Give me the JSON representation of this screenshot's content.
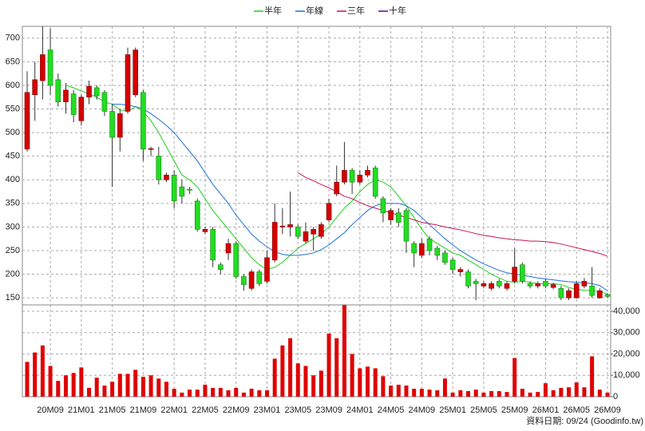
{
  "chart_data": {
    "type": "candlestick",
    "categories": [
      null,
      null,
      null,
      "20M09",
      null,
      null,
      null,
      "21M01",
      null,
      null,
      null,
      "21M05",
      null,
      null,
      null,
      "21M09",
      null,
      null,
      null,
      "22M01",
      null,
      null,
      null,
      "22M05",
      null,
      null,
      null,
      "22M09",
      null,
      null,
      null,
      "23M01",
      null,
      null,
      null,
      "23M05",
      null,
      null,
      null,
      "23M09",
      null,
      null,
      null,
      "24M01",
      null,
      null,
      null,
      "24M05",
      null,
      null,
      null,
      "24M09",
      null,
      null,
      null,
      "25M01",
      null,
      null,
      null,
      "25M05",
      null,
      null,
      null,
      "25M09",
      null,
      null,
      null,
      "26M01",
      null,
      null,
      null,
      "26M05",
      null,
      null,
      null,
      "26M09"
    ],
    "open": [
      465,
      580,
      610,
      675,
      612,
      565,
      582,
      525,
      575,
      595,
      585,
      545,
      490,
      545,
      580,
      585,
      465,
      450,
      400,
      410,
      385,
      380,
      355,
      290,
      295,
      220,
      245,
      265,
      195,
      170,
      205,
      185,
      230,
      300,
      300,
      300,
      270,
      285,
      280,
      315,
      370,
      395,
      420,
      395,
      410,
      425,
      360,
      315,
      330,
      335,
      265,
      240,
      275,
      255,
      245,
      230,
      205,
      205,
      185,
      175,
      170,
      185,
      170,
      185,
      220,
      180,
      175,
      185,
      172,
      170,
      150,
      150,
      175,
      175,
      150,
      157
    ],
    "high": [
      630,
      650,
      725,
      720,
      625,
      605,
      590,
      580,
      610,
      600,
      590,
      560,
      550,
      680,
      680,
      590,
      470,
      470,
      415,
      420,
      400,
      385,
      360,
      300,
      300,
      225,
      275,
      270,
      200,
      210,
      210,
      250,
      350,
      340,
      375,
      305,
      310,
      300,
      310,
      360,
      430,
      480,
      425,
      420,
      430,
      430,
      365,
      340,
      340,
      340,
      270,
      275,
      280,
      260,
      250,
      235,
      215,
      210,
      190,
      185,
      185,
      190,
      185,
      255,
      225,
      185,
      185,
      190,
      182,
      175,
      170,
      185,
      192,
      215,
      170,
      160
    ],
    "low": [
      460,
      525,
      570,
      580,
      555,
      540,
      522,
      515,
      560,
      570,
      535,
      385,
      460,
      540,
      575,
      440,
      450,
      390,
      395,
      340,
      350,
      370,
      290,
      285,
      215,
      200,
      230,
      190,
      165,
      165,
      175,
      180,
      225,
      285,
      280,
      275,
      265,
      250,
      275,
      310,
      365,
      390,
      370,
      390,
      405,
      360,
      310,
      305,
      300,
      245,
      215,
      235,
      240,
      230,
      220,
      200,
      195,
      170,
      145,
      170,
      165,
      170,
      165,
      180,
      180,
      170,
      170,
      170,
      168,
      145,
      145,
      148,
      170,
      150,
      148,
      150
    ],
    "close": [
      585,
      612,
      665,
      600,
      565,
      590,
      538,
      575,
      598,
      578,
      545,
      490,
      540,
      665,
      675,
      465,
      466,
      400,
      410,
      355,
      365,
      378,
      295,
      295,
      230,
      210,
      265,
      195,
      178,
      205,
      180,
      235,
      310,
      302,
      305,
      280,
      290,
      295,
      305,
      350,
      395,
      420,
      395,
      410,
      420,
      365,
      330,
      335,
      310,
      270,
      245,
      265,
      250,
      240,
      225,
      210,
      210,
      175,
      180,
      180,
      180,
      175,
      180,
      215,
      185,
      175,
      180,
      175,
      178,
      150,
      165,
      180,
      185,
      155,
      165,
      153
    ],
    "up_color": "#d40000",
    "down_color": "#22dd22",
    "ylim": [
      135,
      725
    ],
    "yticks": [
      150,
      200,
      250,
      300,
      350,
      400,
      450,
      500,
      550,
      600,
      650,
      700
    ],
    "grid": true,
    "legend": "top",
    "series": [
      {
        "name": "半年",
        "color": "#1ecf1e",
        "values": [
          null,
          null,
          null,
          null,
          null,
          600,
          595,
          588,
          582,
          575,
          565,
          560,
          548,
          545,
          555,
          545,
          525,
          500,
          470,
          440,
          410,
          400,
          385,
          360,
          335,
          315,
          295,
          275,
          255,
          235,
          220,
          210,
          215,
          225,
          240,
          255,
          265,
          275,
          285,
          300,
          320,
          340,
          355,
          375,
          390,
          400,
          395,
          385,
          365,
          345,
          320,
          295,
          275,
          265,
          255,
          245,
          240,
          230,
          220,
          210,
          200,
          192,
          185,
          183,
          185,
          183,
          180,
          180,
          180,
          178,
          172,
          168,
          166,
          165,
          163,
          158
        ]
      },
      {
        "name": "年線",
        "color": "#1f6fd6",
        "values": [
          null,
          null,
          null,
          null,
          null,
          null,
          null,
          null,
          null,
          null,
          null,
          560,
          560,
          558,
          555,
          550,
          540,
          528,
          515,
          500,
          480,
          460,
          440,
          415,
          390,
          370,
          350,
          325,
          305,
          285,
          270,
          258,
          248,
          242,
          240,
          240,
          242,
          245,
          252,
          262,
          275,
          288,
          305,
          320,
          335,
          345,
          350,
          350,
          350,
          345,
          335,
          320,
          305,
          290,
          275,
          262,
          250,
          240,
          230,
          222,
          215,
          208,
          203,
          200,
          198,
          195,
          192,
          190,
          188,
          186,
          184,
          183,
          182,
          180,
          176,
          165
        ]
      },
      {
        "name": "三年",
        "color": "#cc1155",
        "values": [
          null,
          null,
          null,
          null,
          null,
          null,
          null,
          null,
          null,
          null,
          null,
          null,
          null,
          null,
          null,
          null,
          null,
          null,
          null,
          null,
          null,
          null,
          null,
          null,
          null,
          null,
          null,
          null,
          null,
          null,
          null,
          null,
          null,
          null,
          null,
          415,
          405,
          398,
          390,
          383,
          375,
          365,
          360,
          352,
          345,
          340,
          335,
          330,
          325,
          320,
          315,
          310,
          307,
          304,
          300,
          297,
          294,
          290,
          286,
          282,
          280,
          277,
          275,
          273,
          272,
          270,
          270,
          269,
          267,
          264,
          260,
          256,
          252,
          248,
          244,
          238
        ]
      },
      {
        "name": "十年",
        "color": "#660099",
        "values": [
          null,
          null,
          null,
          null,
          null,
          null,
          null,
          null,
          null,
          null,
          null,
          null,
          null,
          null,
          null,
          null,
          null,
          null,
          null,
          null,
          null,
          null,
          null,
          null,
          null,
          null,
          null,
          null,
          null,
          null,
          null,
          null,
          null,
          null,
          null,
          null,
          null,
          null,
          null,
          null,
          null,
          null,
          null,
          null,
          null,
          null,
          null,
          null,
          null,
          null,
          null,
          null,
          null,
          null,
          null,
          null,
          null,
          null,
          null,
          null,
          null,
          null,
          null,
          null,
          null,
          null,
          null,
          null,
          null,
          null,
          null,
          null,
          null,
          null,
          null,
          null
        ]
      }
    ],
    "volume": {
      "color": "#e00000",
      "values": [
        16300,
        20700,
        24000,
        14400,
        7400,
        10000,
        11100,
        13700,
        4100,
        8900,
        5200,
        7000,
        10700,
        10700,
        12600,
        9300,
        10000,
        8500,
        7000,
        3700,
        1900,
        3300,
        3300,
        5600,
        4100,
        4100,
        3000,
        4100,
        1900,
        3700,
        3000,
        3000,
        17800,
        24000,
        27400,
        15600,
        14400,
        10000,
        12200,
        29600,
        27400,
        43000,
        20000,
        13300,
        14100,
        13300,
        9600,
        5200,
        5600,
        5200,
        3700,
        3700,
        3300,
        3000,
        8500,
        1900,
        3000,
        2600,
        3300,
        1900,
        2600,
        2600,
        2200,
        18100,
        3700,
        1900,
        2200,
        6300,
        3000,
        4100,
        4400,
        6700,
        4400,
        18900,
        3300,
        1900
      ],
      "y2lim": [
        0,
        43000
      ],
      "y2ticks": [
        0,
        {
          "value": 10000,
          "label": "10,000"
        },
        {
          "value": 20000,
          "label": "20,000"
        },
        {
          "value": 30000,
          "label": "30,000"
        },
        {
          "value": 40000,
          "label": "40,000"
        }
      ]
    },
    "source": "資料日期: 09/24 (Goodinfo.tw)"
  }
}
